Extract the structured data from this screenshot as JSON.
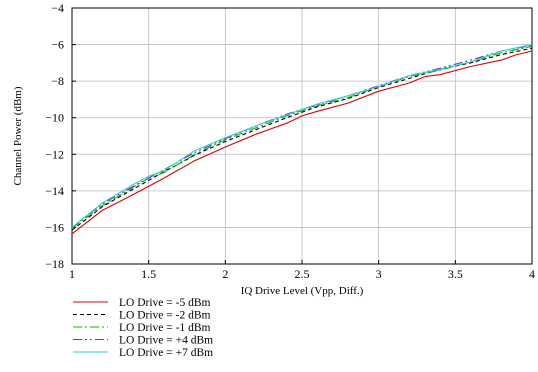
{
  "chart_data": {
    "type": "line",
    "title": "",
    "xlabel": "IQ Drive Level (Vpp, Diff.)",
    "ylabel": "Channel Power (dBm)",
    "xlim": [
      1,
      4
    ],
    "ylim": [
      -18,
      -4
    ],
    "xticks": [
      1,
      1.5,
      2,
      2.5,
      3,
      3.5,
      4
    ],
    "yticks": [
      -18,
      -16,
      -14,
      -12,
      -10,
      -8,
      -6,
      -4
    ],
    "xtick_labels": [
      "1",
      "1.5",
      "2",
      "2.5",
      "3",
      "3.5",
      "4"
    ],
    "ytick_labels": [
      "−18",
      "−16",
      "−14",
      "−12",
      "−10",
      "−8",
      "−6",
      "−4"
    ],
    "grid": true,
    "legend_position": "below",
    "series": [
      {
        "name": "LO Drive = -5 dBm",
        "color": "#dd0000",
        "dash": "solid",
        "x": [
          1.0,
          1.2,
          1.4,
          1.6,
          1.8,
          2.0,
          2.2,
          2.4,
          2.5,
          2.6,
          2.8,
          3.0,
          3.2,
          3.3,
          3.4,
          3.6,
          3.8,
          3.9,
          4.0
        ],
        "y": [
          -16.35,
          -15.05,
          -14.2,
          -13.3,
          -12.35,
          -11.6,
          -10.9,
          -10.3,
          -9.9,
          -9.65,
          -9.2,
          -8.55,
          -8.1,
          -7.75,
          -7.65,
          -7.2,
          -6.85,
          -6.55,
          -6.35
        ]
      },
      {
        "name": "LO Drive = -2 dBm",
        "color": "#000000",
        "dash": "4,3",
        "x": [
          1.0,
          1.2,
          1.4,
          1.6,
          1.8,
          2.0,
          2.2,
          2.4,
          2.6,
          2.8,
          3.0,
          3.2,
          3.4,
          3.6,
          3.8,
          4.0
        ],
        "y": [
          -16.15,
          -14.85,
          -13.9,
          -12.95,
          -12.05,
          -11.3,
          -10.65,
          -10.0,
          -9.4,
          -8.95,
          -8.35,
          -7.85,
          -7.35,
          -7.0,
          -6.55,
          -6.2
        ]
      },
      {
        "name": "LO Drive = -1 dBm",
        "color": "#00bb00",
        "dash": "9,3,2,3",
        "x": [
          1.0,
          1.2,
          1.4,
          1.5,
          1.6,
          1.8,
          2.0,
          2.2,
          2.4,
          2.6,
          2.8,
          3.0,
          3.2,
          3.4,
          3.6,
          3.8,
          4.0
        ],
        "y": [
          -16.05,
          -14.8,
          -13.8,
          -13.3,
          -13.0,
          -12.0,
          -11.2,
          -10.55,
          -9.9,
          -9.35,
          -8.9,
          -8.3,
          -7.75,
          -7.4,
          -6.95,
          -6.45,
          -6.1
        ]
      },
      {
        "name": "LO Drive = +4 dBm",
        "color": "#7a2be2",
        "dash": "9,3,2,3,2,3",
        "x": [
          1.0,
          1.2,
          1.4,
          1.6,
          1.8,
          2.0,
          2.2,
          2.4,
          2.6,
          2.8,
          3.0,
          3.2,
          3.4,
          3.6,
          3.8,
          4.0
        ],
        "y": [
          -16.0,
          -14.7,
          -13.75,
          -12.85,
          -11.9,
          -11.15,
          -10.45,
          -9.8,
          -9.3,
          -8.8,
          -8.25,
          -7.7,
          -7.3,
          -6.85,
          -6.35,
          -6.05
        ]
      },
      {
        "name": "LO Drive = +7 dBm",
        "color": "#33cccc",
        "dash": "solid",
        "x": [
          1.0,
          1.2,
          1.4,
          1.5,
          1.6,
          1.8,
          2.0,
          2.2,
          2.4,
          2.6,
          2.8,
          3.0,
          3.2,
          3.4,
          3.6,
          3.8,
          4.0
        ],
        "y": [
          -16.0,
          -14.65,
          -13.65,
          -13.2,
          -12.9,
          -11.8,
          -11.1,
          -10.45,
          -9.85,
          -9.25,
          -8.8,
          -8.3,
          -7.7,
          -7.35,
          -6.95,
          -6.35,
          -6.0
        ]
      }
    ]
  }
}
